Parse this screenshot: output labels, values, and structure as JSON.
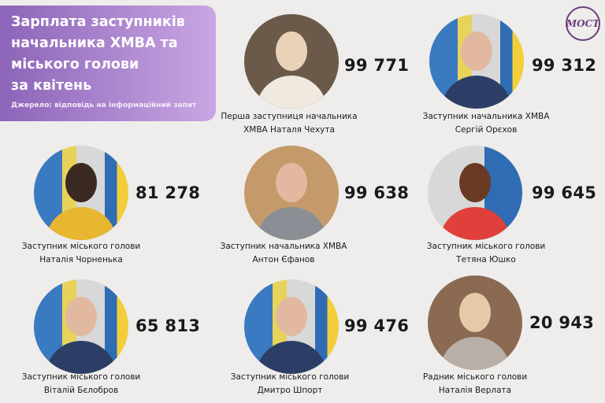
{
  "header": {
    "title": "Зарплата заступників\nначальника ХМВА та\nміського голови\nза квітень",
    "source": "Джерело: відповідь на інформаційний запит",
    "logo": "МОСТ"
  },
  "people": [
    {
      "role": "Перша заступниця начальника",
      "role2": "ХМВА",
      "name": "Наталя Чехута",
      "amount": "99 771"
    },
    {
      "role": "Заступник начальника ХМВА",
      "name": "Сергій Орєхов",
      "amount": "99 312"
    },
    {
      "role": "Заступник міського голови",
      "name": "Наталія Чорненька",
      "amount": "81 278"
    },
    {
      "role": "Заступник начальника ХМВА",
      "name": "Антон Єфанов",
      "amount": "99 638"
    },
    {
      "role": "Заступник міського голови",
      "name": "Тетяна Юшко",
      "amount": "99 645"
    },
    {
      "role": "Заступник міського голови",
      "name": "Віталій Бєлобров",
      "amount": "65 813"
    },
    {
      "role": "Заступник міського голови",
      "name": "Дмитро Шпорт",
      "amount": "99 476"
    },
    {
      "role": "Радник міського голови",
      "name": "Наталія Верлата",
      "amount": "20 943"
    }
  ]
}
